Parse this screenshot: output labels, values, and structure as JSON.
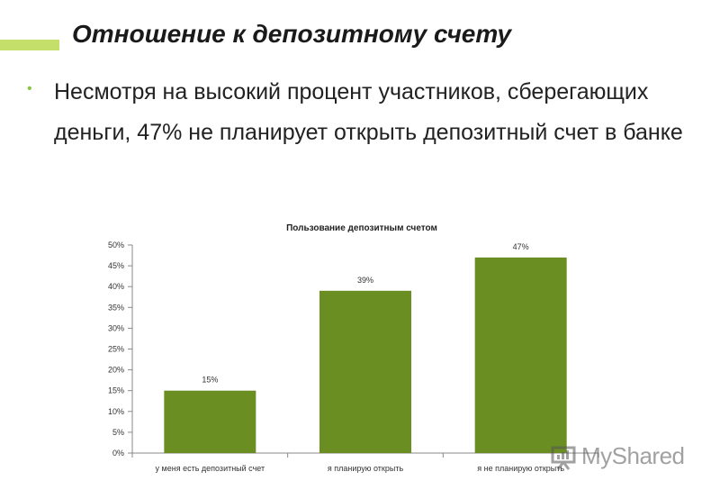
{
  "slide": {
    "title": "Отношение к депозитному счету",
    "bullet": "Несмотря на высокий процент участников, сберегающих деньги, 47% не планирует открыть депозитный счет в банке"
  },
  "watermark": {
    "text": "MyShared"
  },
  "colors": {
    "accent": "#c5df6b",
    "bar": "#6b8e23",
    "bullet": "#8dc63f"
  },
  "chart_data": {
    "type": "bar",
    "title": "Пользование депозитным счетом",
    "categories": [
      "у меня есть депозитный счет",
      "я планирую открыть",
      "я не планирую открыть"
    ],
    "values": [
      15,
      39,
      47
    ],
    "data_labels": [
      "15%",
      "39%",
      "47%"
    ],
    "ylim": [
      0,
      50
    ],
    "yticks": [
      0,
      5,
      10,
      15,
      20,
      25,
      30,
      35,
      40,
      45,
      50
    ],
    "ytick_labels": [
      "0%",
      "5%",
      "10%",
      "15%",
      "20%",
      "25%",
      "30%",
      "35%",
      "40%",
      "45%",
      "50%"
    ],
    "xlabel": "",
    "ylabel": "",
    "grid": false,
    "legend": "none"
  }
}
